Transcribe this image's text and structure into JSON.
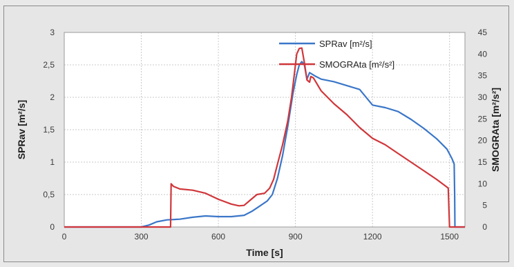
{
  "chart_data": {
    "type": "line",
    "xlabel": "Time [s]",
    "ylabel": "SPRav [m²/s]",
    "y2label": "SMOGRAta [m²/s²]",
    "xlim": [
      0,
      1560
    ],
    "ylim": [
      0,
      3
    ],
    "y2lim": [
      0,
      45
    ],
    "xticks": [
      "0",
      "300",
      "600",
      "900",
      "1200",
      "1500"
    ],
    "yticks": [
      "0",
      "0,5",
      "1",
      "1,5",
      "2",
      "2,5",
      "3"
    ],
    "y2ticks": [
      "0",
      "5",
      "10",
      "15",
      "20",
      "25",
      "30",
      "35",
      "40",
      "45"
    ],
    "grid": true,
    "legend_position": "top-right",
    "series": [
      {
        "name": "SPRav [m²/s]",
        "color": "#3a76c8",
        "axis": "left",
        "points": [
          [
            0,
            0
          ],
          [
            300,
            0
          ],
          [
            330,
            0.03
          ],
          [
            360,
            0.08
          ],
          [
            400,
            0.11
          ],
          [
            450,
            0.12
          ],
          [
            500,
            0.15
          ],
          [
            550,
            0.17
          ],
          [
            600,
            0.16
          ],
          [
            650,
            0.16
          ],
          [
            700,
            0.18
          ],
          [
            730,
            0.24
          ],
          [
            760,
            0.32
          ],
          [
            790,
            0.4
          ],
          [
            810,
            0.5
          ],
          [
            830,
            0.75
          ],
          [
            850,
            1.1
          ],
          [
            870,
            1.55
          ],
          [
            890,
            2.05
          ],
          [
            905,
            2.35
          ],
          [
            915,
            2.5
          ],
          [
            925,
            2.55
          ],
          [
            935,
            2.5
          ],
          [
            945,
            2.28
          ],
          [
            955,
            2.38
          ],
          [
            980,
            2.32
          ],
          [
            1000,
            2.28
          ],
          [
            1050,
            2.24
          ],
          [
            1100,
            2.18
          ],
          [
            1150,
            2.12
          ],
          [
            1200,
            1.88
          ],
          [
            1250,
            1.84
          ],
          [
            1300,
            1.78
          ],
          [
            1350,
            1.66
          ],
          [
            1400,
            1.52
          ],
          [
            1450,
            1.36
          ],
          [
            1490,
            1.2
          ],
          [
            1510,
            1.05
          ],
          [
            1518,
            0.97
          ],
          [
            1520,
            0.5
          ],
          [
            1521,
            0
          ],
          [
            1560,
            0
          ]
        ]
      },
      {
        "name": "SMOGRAta [m²/s²]",
        "color": "#d0363a",
        "axis": "right",
        "points": [
          [
            0,
            0
          ],
          [
            414,
            0
          ],
          [
            416,
            10
          ],
          [
            425,
            9.4
          ],
          [
            450,
            8.8
          ],
          [
            500,
            8.5
          ],
          [
            550,
            7.8
          ],
          [
            600,
            6.4
          ],
          [
            650,
            5.3
          ],
          [
            680,
            4.9
          ],
          [
            700,
            5.0
          ],
          [
            720,
            6.0
          ],
          [
            750,
            7.5
          ],
          [
            780,
            7.8
          ],
          [
            800,
            9.0
          ],
          [
            815,
            11.0
          ],
          [
            830,
            14.5
          ],
          [
            850,
            19.0
          ],
          [
            870,
            24.5
          ],
          [
            885,
            30.0
          ],
          [
            895,
            35.0
          ],
          [
            905,
            40.0
          ],
          [
            915,
            41.3
          ],
          [
            925,
            41.4
          ],
          [
            935,
            38.0
          ],
          [
            945,
            34.0
          ],
          [
            955,
            33.5
          ],
          [
            960,
            34.8
          ],
          [
            970,
            34.5
          ],
          [
            985,
            33.0
          ],
          [
            1000,
            31.5
          ],
          [
            1050,
            28.5
          ],
          [
            1100,
            26.0
          ],
          [
            1150,
            23.0
          ],
          [
            1200,
            20.5
          ],
          [
            1250,
            19.0
          ],
          [
            1300,
            17.0
          ],
          [
            1350,
            15.0
          ],
          [
            1400,
            13.0
          ],
          [
            1450,
            11.0
          ],
          [
            1495,
            9.0
          ],
          [
            1500,
            0
          ],
          [
            1560,
            0
          ]
        ]
      }
    ]
  }
}
